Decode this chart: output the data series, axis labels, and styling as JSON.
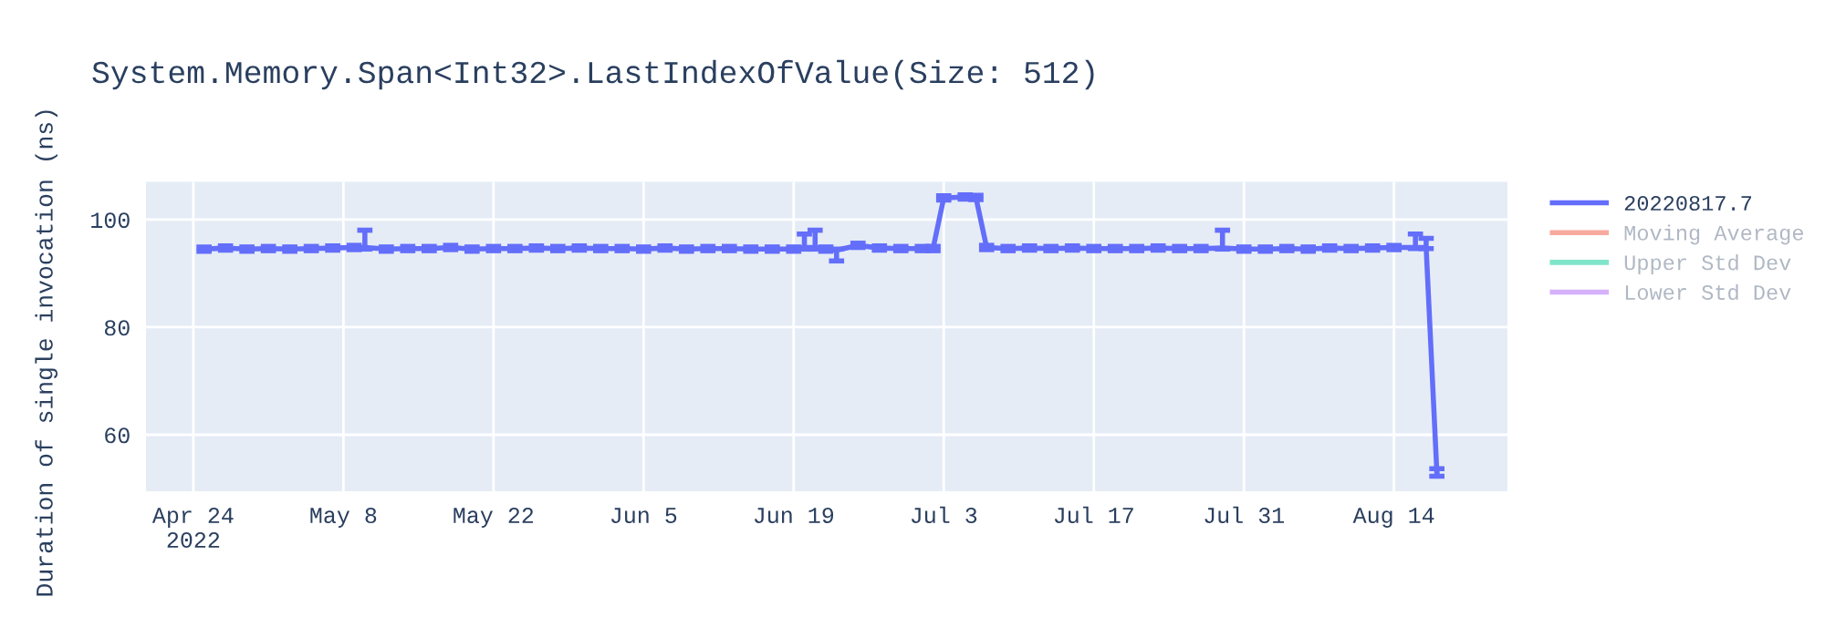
{
  "chart_data": {
    "type": "line",
    "title": "System.Memory.Span<Int32>.LastIndexOfValue(Size: 512)",
    "ylabel": "Duration of single invocation (ns)",
    "xlim": [
      "2022-04-19T14:00",
      "2022-08-24T14:00"
    ],
    "xticks": [
      {
        "value": "2022-04-24",
        "label": "Apr 24\n2022"
      },
      {
        "value": "2022-05-08",
        "label": "May 8"
      },
      {
        "value": "2022-05-22",
        "label": "May 22"
      },
      {
        "value": "2022-06-05",
        "label": "Jun 5"
      },
      {
        "value": "2022-06-19",
        "label": "Jun 19"
      },
      {
        "value": "2022-07-03",
        "label": "Jul 3"
      },
      {
        "value": "2022-07-17",
        "label": "Jul 17"
      },
      {
        "value": "2022-07-31",
        "label": "Jul 31"
      },
      {
        "value": "2022-08-14",
        "label": "Aug 14"
      }
    ],
    "ylim": [
      49.5,
      107
    ],
    "yticks": [
      60,
      80,
      100
    ],
    "grid": true,
    "legend": "top right",
    "series": [
      {
        "name": "20220817.7",
        "color": "#636efa",
        "x": [
          "2022-04-25",
          "2022-04-27",
          "2022-04-29",
          "2022-05-01",
          "2022-05-03",
          "2022-05-05",
          "2022-05-07",
          "2022-05-09",
          "2022-05-10",
          "2022-05-12",
          "2022-05-14",
          "2022-05-16",
          "2022-05-18",
          "2022-05-20",
          "2022-05-22",
          "2022-05-24",
          "2022-05-26",
          "2022-05-28",
          "2022-05-30",
          "2022-06-01",
          "2022-06-03",
          "2022-06-05",
          "2022-06-07",
          "2022-06-09",
          "2022-06-11",
          "2022-06-13",
          "2022-06-15",
          "2022-06-17",
          "2022-06-19",
          "2022-06-20",
          "2022-06-21",
          "2022-06-22",
          "2022-06-23",
          "2022-06-25",
          "2022-06-27",
          "2022-06-29",
          "2022-07-01",
          "2022-07-02",
          "2022-07-03",
          "2022-07-05",
          "2022-07-06",
          "2022-07-07",
          "2022-07-09",
          "2022-07-11",
          "2022-07-13",
          "2022-07-15",
          "2022-07-17",
          "2022-07-19",
          "2022-07-21",
          "2022-07-23",
          "2022-07-25",
          "2022-07-27",
          "2022-07-29",
          "2022-07-31",
          "2022-08-02",
          "2022-08-04",
          "2022-08-06",
          "2022-08-08",
          "2022-08-10",
          "2022-08-12",
          "2022-08-14",
          "2022-08-16",
          "2022-08-17",
          "2022-08-18"
        ],
        "values": [
          94.5,
          94.7,
          94.5,
          94.6,
          94.5,
          94.6,
          94.7,
          94.8,
          94.8,
          94.5,
          94.6,
          94.6,
          94.8,
          94.5,
          94.6,
          94.6,
          94.7,
          94.6,
          94.7,
          94.6,
          94.6,
          94.5,
          94.7,
          94.5,
          94.6,
          94.6,
          94.5,
          94.5,
          94.5,
          94.8,
          94.8,
          94.5,
          94.3,
          95.2,
          94.7,
          94.6,
          94.6,
          94.6,
          104,
          104.2,
          104.1,
          94.8,
          94.6,
          94.7,
          94.6,
          94.7,
          94.6,
          94.6,
          94.6,
          94.7,
          94.6,
          94.6,
          94.7,
          94.5,
          94.5,
          94.6,
          94.5,
          94.7,
          94.6,
          94.7,
          94.8,
          94.8,
          94.8,
          53
        ],
        "errors": [
          0.4,
          0.4,
          0.4,
          0.4,
          0.4,
          0.4,
          0.4,
          0.4,
          [
            94.5,
            98
          ],
          0.4,
          0.4,
          0.4,
          0.4,
          0.4,
          0.4,
          0.4,
          0.4,
          0.4,
          0.4,
          0.4,
          0.4,
          0.4,
          0.4,
          0.4,
          0.4,
          0.4,
          0.4,
          0.4,
          0.4,
          [
            94.5,
            97.3
          ],
          [
            94.5,
            98
          ],
          0.4,
          [
            92.3,
            94.5
          ],
          0.4,
          0.4,
          0.4,
          0.4,
          0.4,
          0.4,
          0.4,
          0.4,
          0.4,
          0.4,
          0.4,
          0.4,
          0.4,
          0.4,
          0.4,
          0.4,
          0.4,
          0.4,
          0.4,
          [
            94.5,
            98
          ],
          0.4,
          0.4,
          0.4,
          0.4,
          0.4,
          0.4,
          0.4,
          0.4,
          [
            94.6,
            97.3
          ],
          [
            94.6,
            96.5
          ],
          [
            52.3,
            53.7
          ]
        ]
      },
      {
        "name": "Moving Average",
        "color": "#ef553b"
      },
      {
        "name": "Upper Std Dev",
        "color": "#00cc96"
      },
      {
        "name": "Lower Std Dev",
        "color": "#ab63fa"
      }
    ]
  }
}
